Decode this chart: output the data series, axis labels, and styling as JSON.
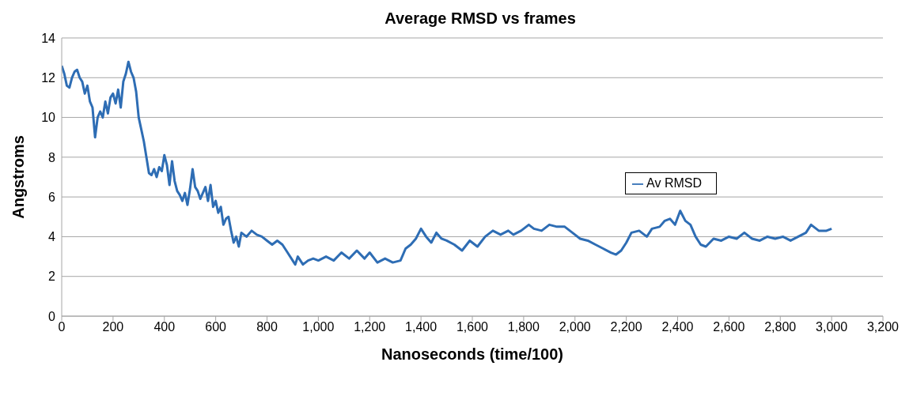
{
  "chart_data": {
    "type": "line",
    "title": "Average RMSD vs frames",
    "xlabel": "Nanoseconds (time/100)",
    "ylabel": "Angstroms",
    "x": [
      0,
      10,
      20,
      30,
      40,
      50,
      60,
      70,
      80,
      90,
      100,
      110,
      120,
      130,
      140,
      150,
      160,
      170,
      180,
      190,
      200,
      210,
      220,
      230,
      240,
      250,
      260,
      270,
      280,
      290,
      300,
      310,
      320,
      330,
      340,
      350,
      360,
      370,
      380,
      390,
      400,
      410,
      420,
      430,
      440,
      450,
      460,
      470,
      480,
      490,
      500,
      510,
      520,
      530,
      540,
      550,
      560,
      570,
      580,
      590,
      600,
      610,
      620,
      630,
      640,
      650,
      660,
      670,
      680,
      690,
      700,
      720,
      740,
      760,
      780,
      800,
      820,
      840,
      860,
      880,
      900,
      910,
      920,
      940,
      960,
      980,
      1000,
      1030,
      1060,
      1090,
      1120,
      1150,
      1180,
      1200,
      1230,
      1260,
      1290,
      1320,
      1340,
      1360,
      1380,
      1400,
      1420,
      1440,
      1460,
      1480,
      1500,
      1530,
      1560,
      1590,
      1620,
      1650,
      1680,
      1710,
      1740,
      1760,
      1790,
      1820,
      1840,
      1870,
      1900,
      1930,
      1960,
      1990,
      2020,
      2050,
      2080,
      2110,
      2140,
      2160,
      2180,
      2200,
      2220,
      2250,
      2280,
      2300,
      2330,
      2350,
      2370,
      2390,
      2410,
      2430,
      2450,
      2470,
      2490,
      2510,
      2540,
      2570,
      2600,
      2630,
      2660,
      2690,
      2720,
      2750,
      2780,
      2810,
      2840,
      2870,
      2900,
      2920,
      2950,
      2980,
      3000
    ],
    "series": [
      {
        "name": "Av RMSD",
        "color": "#2e6db4",
        "values": [
          12.6,
          12.2,
          11.6,
          11.5,
          12.0,
          12.3,
          12.4,
          12.0,
          11.8,
          11.2,
          11.6,
          10.8,
          10.5,
          9.0,
          10.0,
          10.3,
          10.0,
          10.8,
          10.2,
          11.0,
          11.2,
          10.7,
          11.4,
          10.5,
          11.8,
          12.2,
          12.8,
          12.3,
          12.0,
          11.3,
          10.0,
          9.4,
          8.8,
          8.0,
          7.2,
          7.1,
          7.4,
          7.0,
          7.5,
          7.3,
          8.1,
          7.6,
          6.6,
          7.8,
          6.8,
          6.3,
          6.1,
          5.8,
          6.2,
          5.6,
          6.4,
          7.4,
          6.5,
          6.3,
          5.9,
          6.2,
          6.5,
          5.8,
          6.6,
          5.5,
          5.8,
          5.2,
          5.5,
          4.6,
          4.9,
          5.0,
          4.3,
          3.7,
          4.0,
          3.5,
          4.2,
          4.0,
          4.3,
          4.1,
          4.0,
          3.8,
          3.6,
          3.8,
          3.6,
          3.2,
          2.8,
          2.6,
          3.0,
          2.6,
          2.8,
          2.9,
          2.8,
          3.0,
          2.8,
          3.2,
          2.9,
          3.3,
          2.9,
          3.2,
          2.7,
          2.9,
          2.7,
          2.8,
          3.4,
          3.6,
          3.9,
          4.4,
          4.0,
          3.7,
          4.2,
          3.9,
          3.8,
          3.6,
          3.3,
          3.8,
          3.5,
          4.0,
          4.3,
          4.1,
          4.3,
          4.1,
          4.3,
          4.6,
          4.4,
          4.3,
          4.6,
          4.5,
          4.5,
          4.2,
          3.9,
          3.8,
          3.6,
          3.4,
          3.2,
          3.1,
          3.3,
          3.7,
          4.2,
          4.3,
          4.0,
          4.4,
          4.5,
          4.8,
          4.9,
          4.6,
          5.3,
          4.8,
          4.6,
          4.0,
          3.6,
          3.5,
          3.9,
          3.8,
          4.0,
          3.9,
          4.2,
          3.9,
          3.8,
          4.0,
          3.9,
          4.0,
          3.8,
          4.0,
          4.2,
          4.6,
          4.3,
          4.3,
          4.4
        ]
      }
    ],
    "xlim": [
      0,
      3200
    ],
    "xticks": [
      0,
      {
        "value": 200,
        "label": "200"
      },
      {
        "value": 400,
        "label": "400"
      },
      {
        "value": 600,
        "label": "600"
      },
      {
        "value": 800,
        "label": "800"
      },
      {
        "value": 1000,
        "label": "1,000"
      },
      {
        "value": 1200,
        "label": "1,200"
      },
      {
        "value": 1400,
        "label": "1,400"
      },
      {
        "value": 1600,
        "label": "1,600"
      },
      {
        "value": 1800,
        "label": "1,800"
      },
      {
        "value": 2000,
        "label": "2,000"
      },
      {
        "value": 2200,
        "label": "2,200"
      },
      {
        "value": 2400,
        "label": "2,400"
      },
      {
        "value": 2600,
        "label": "2,600"
      },
      {
        "value": 2800,
        "label": "2,800"
      },
      {
        "value": 3000,
        "label": "3,000"
      },
      {
        "value": 3200,
        "label": "3,200"
      }
    ],
    "ylim": [
      0,
      14
    ],
    "yticks": [
      0,
      2,
      4,
      6,
      8,
      10,
      12,
      14
    ],
    "grid": "y",
    "legend": "right",
    "marker": "none",
    "line_style": "solid"
  }
}
